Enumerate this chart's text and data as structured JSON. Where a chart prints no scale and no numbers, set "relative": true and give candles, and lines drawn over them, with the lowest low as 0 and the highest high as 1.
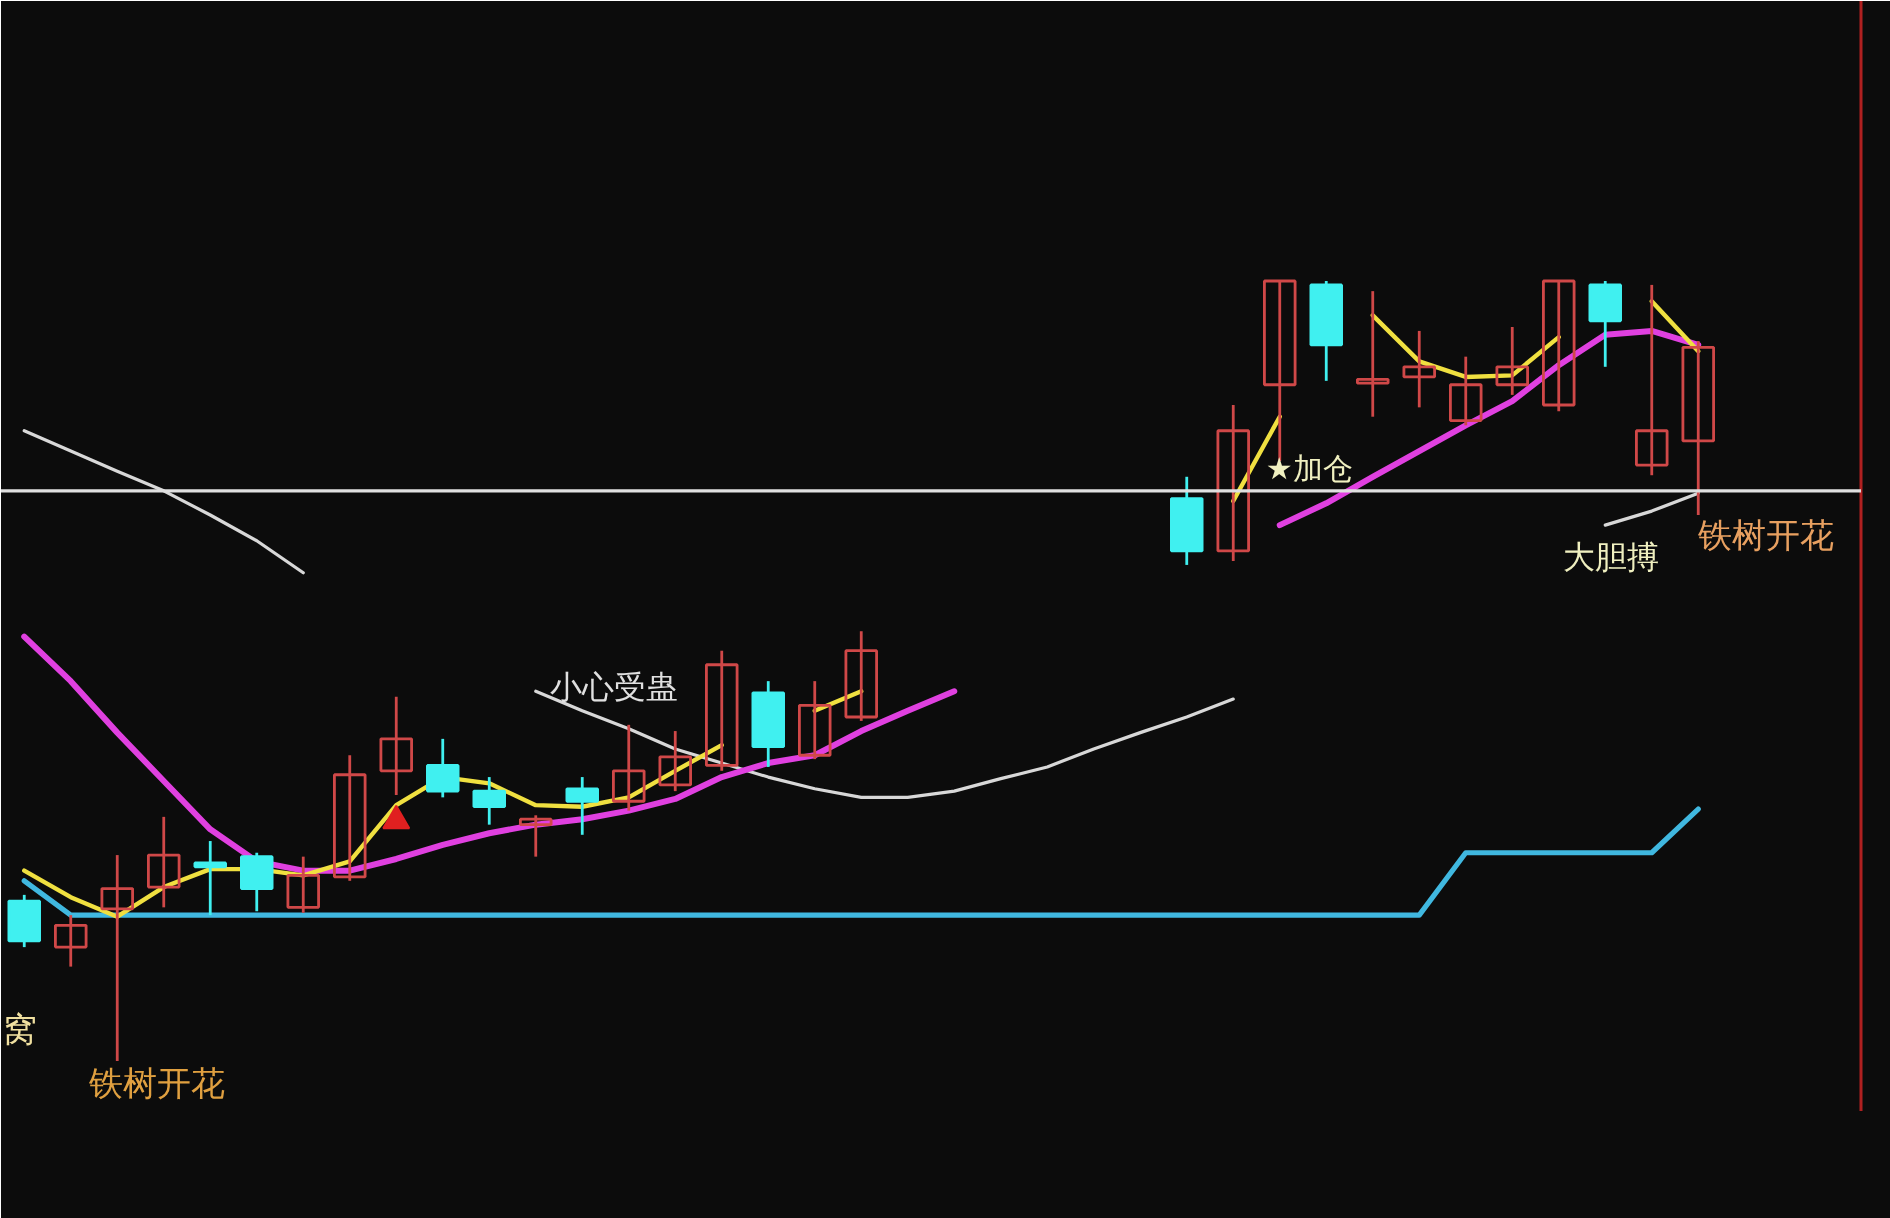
{
  "chart_data": {
    "type": "candlestick",
    "relative": true,
    "categories": [
      null,
      null,
      null,
      null,
      null,
      null,
      null,
      null,
      null,
      null,
      null,
      null,
      null,
      null,
      null,
      null,
      null,
      null,
      null,
      null,
      null,
      null,
      null,
      null,
      null,
      null,
      null,
      null,
      null,
      null,
      null,
      null,
      null,
      null,
      null,
      null,
      null,
      null,
      null,
      null
    ],
    "ohlc": [
      [
        0.205,
        0.213,
        0.146,
        0.154
      ],
      [
        0.146,
        0.187,
        0.121,
        0.174
      ],
      [
        0.195,
        0.264,
        0,
        0.221
      ],
      [
        0.223,
        0.313,
        0.197,
        0.264
      ],
      [
        0.254,
        0.282,
        0.187,
        0.249
      ],
      [
        0.262,
        0.267,
        0.192,
        0.221
      ],
      [
        0.197,
        0.262,
        0.19,
        0.238
      ],
      [
        0.236,
        0.392,
        0.231,
        0.367
      ],
      [
        0.372,
        0.467,
        0.341,
        0.413
      ],
      [
        0.379,
        0.413,
        0.338,
        0.346
      ],
      [
        0.346,
        0.364,
        0.303,
        0.326
      ],
      [
        0.303,
        0.315,
        0.262,
        0.31
      ],
      [
        0.349,
        0.364,
        0.29,
        0.333
      ],
      [
        0.333,
        0.431,
        0.321,
        0.372
      ],
      [
        0.354,
        0.423,
        0.346,
        0.39
      ],
      [
        0.379,
        0.526,
        0.372,
        0.508
      ],
      [
        0.472,
        0.487,
        0.377,
        0.403
      ],
      [
        0.392,
        0.487,
        0.387,
        0.456
      ],
      [
        0.441,
        0.551,
        0.436,
        0.526
      ],
      null,
      null,
      null,
      null,
      null,
      null,
      [
        0.721,
        0.749,
        0.636,
        0.654
      ],
      [
        0.654,
        0.841,
        0.641,
        0.808
      ],
      [
        0.867,
        1,
        0.769,
        1
      ],
      [
        0.995,
        1,
        0.872,
        0.918
      ],
      [
        0.869,
        0.987,
        0.826,
        0.874
      ],
      [
        0.877,
        0.936,
        0.838,
        0.89
      ],
      [
        0.821,
        0.903,
        0.815,
        0.867
      ],
      [
        0.867,
        0.941,
        0.854,
        0.89
      ],
      [
        0.841,
        1,
        0.833,
        1
      ],
      [
        0.995,
        1,
        0.89,
        0.949
      ],
      [
        0.764,
        0.995,
        0.751,
        0.808
      ],
      [
        0.795,
        0.923,
        0.7,
        0.915
      ],
      null,
      null,
      null
    ],
    "colors": [
      "#40f0f0",
      "#d04848",
      "#d04848",
      "#d04848",
      "#40f0f0",
      "#40f0f0",
      "#d04848",
      "#d04848",
      "#d04848",
      "#40f0f0",
      "#40f0f0",
      "#d04848",
      "#40f0f0",
      "#d04848",
      "#d04848",
      "#d04848",
      "#40f0f0",
      "#d04848",
      "#d04848",
      null,
      null,
      null,
      null,
      null,
      null,
      "#40f0f0",
      "#d04848",
      "#d04848",
      "#40f0f0",
      "#d04848",
      "#d04848",
      "#d04848",
      "#d04848",
      "#d04848",
      "#40f0f0",
      "#d04848",
      "#d04848",
      null,
      null,
      null
    ],
    "series": [
      {
        "type": "line",
        "color": "#d8d8d8",
        "values": [
          0.808,
          0.782,
          0.756,
          0.731,
          0.7,
          0.667,
          0.626,
          null,
          null,
          null,
          null,
          0.474,
          0.449,
          0.426,
          0.4,
          0.382,
          0.364,
          0.349,
          0.338,
          0.338,
          0.346,
          0.362,
          0.377,
          0.4,
          0.421,
          0.441,
          0.464,
          null,
          null,
          null,
          null,
          null,
          null,
          null,
          0.687,
          0.705,
          0.728,
          null,
          null,
          null
        ]
      },
      {
        "type": "line",
        "color": "#40b8e0",
        "values": [
          0.231,
          0.187,
          0.187,
          0.187,
          0.187,
          0.187,
          0.187,
          0.187,
          0.187,
          0.187,
          0.187,
          0.187,
          0.187,
          0.187,
          0.187,
          0.187,
          0.187,
          0.187,
          0.187,
          0.187,
          0.187,
          0.187,
          0.187,
          0.187,
          0.187,
          0.187,
          0.187,
          0.187,
          0.187,
          0.187,
          0.187,
          0.267,
          0.267,
          0.267,
          0.267,
          0.267,
          0.323,
          null,
          null,
          null
        ]
      },
      {
        "type": "line",
        "color": "#e040e0",
        "values": [
          0.544,
          0.487,
          0.421,
          0.359,
          0.297,
          0.256,
          0.244,
          0.244,
          0.259,
          0.277,
          0.292,
          0.303,
          0.31,
          0.321,
          0.336,
          0.364,
          0.382,
          0.392,
          0.423,
          0.449,
          0.474,
          null,
          null,
          null,
          null,
          null,
          null,
          0.687,
          0.715,
          0.749,
          0.782,
          0.815,
          0.846,
          0.892,
          0.931,
          0.936,
          0.918,
          null,
          null,
          null
        ]
      },
      {
        "type": "line",
        "color": "#f0e040",
        "values": [
          0.244,
          0.21,
          0.185,
          0.223,
          0.246,
          0.246,
          0.238,
          0.256,
          0.328,
          0.364,
          0.356,
          0.328,
          0.326,
          0.338,
          0.372,
          0.405,
          null,
          0.449,
          0.474,
          null,
          null,
          null,
          null,
          null,
          null,
          null,
          0.718,
          0.826,
          null,
          0.956,
          0.897,
          0.877,
          0.879,
          0.928,
          null,
          0.974,
          0.91,
          null,
          null,
          null
        ]
      },
      {
        "type": "scatter",
        "color": "#e02020",
        "marker": "triangle",
        "values": [
          null,
          null,
          null,
          null,
          null,
          null,
          null,
          null,
          0.308,
          null,
          null,
          null,
          null,
          null,
          null,
          null,
          null,
          null,
          null,
          null,
          null,
          null,
          null,
          null,
          null,
          null,
          null,
          null,
          null,
          null,
          null,
          null,
          null,
          null,
          null,
          null,
          null,
          null,
          null,
          null
        ]
      }
    ],
    "ref_lines": [
      {
        "axis": "y",
        "value": 0.731,
        "color": "#e0e0e0"
      }
    ],
    "annotations": [
      "铁树开花",
      "大胆搏",
      "★加仓",
      "小心受蛊",
      "铁树开花",
      "窝"
    ]
  }
}
